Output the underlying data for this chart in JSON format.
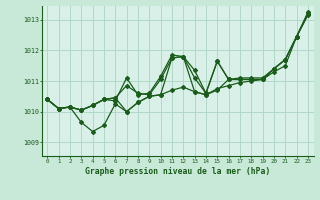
{
  "title": "Graphe pression niveau de la mer (hPa)",
  "background_color": "#c8e8d8",
  "plot_bg_color": "#d8f0e8",
  "grid_color": "#b0d8c8",
  "line_color": "#1a5c1a",
  "xlim": [
    -0.5,
    23.5
  ],
  "ylim": [
    1008.55,
    1013.45
  ],
  "yticks": [
    1009,
    1010,
    1011,
    1012,
    1013
  ],
  "xticks": [
    0,
    1,
    2,
    3,
    4,
    5,
    6,
    7,
    8,
    9,
    10,
    11,
    12,
    13,
    14,
    15,
    16,
    17,
    18,
    19,
    20,
    21,
    22,
    23
  ],
  "series": [
    [
      1010.4,
      1010.1,
      1010.15,
      1009.65,
      1009.35,
      1009.55,
      1010.25,
      1010.0,
      1010.3,
      1010.5,
      1010.55,
      1010.7,
      1010.8,
      1010.65,
      1010.55,
      1010.75,
      1010.85,
      1010.95,
      1011.0,
      1011.05,
      1011.3,
      1011.5,
      1012.45,
      1013.2
    ],
    [
      1010.4,
      1010.1,
      1010.15,
      1010.05,
      1010.2,
      1010.4,
      1010.35,
      1011.1,
      1010.55,
      1010.6,
      1011.15,
      1011.85,
      1011.8,
      1011.35,
      1010.6,
      1011.65,
      1011.05,
      1011.1,
      1011.1,
      1011.1,
      1011.4,
      1011.7,
      1012.45,
      1013.25
    ],
    [
      1010.4,
      1010.1,
      1010.15,
      1010.05,
      1010.2,
      1010.4,
      1010.45,
      1010.85,
      1010.6,
      1010.55,
      1011.05,
      1011.75,
      1011.8,
      1011.1,
      1010.6,
      1011.65,
      1011.05,
      1011.05,
      1011.05,
      1011.05,
      1011.4,
      1011.7,
      1012.45,
      1013.2
    ],
    [
      1010.4,
      1010.1,
      1010.15,
      1010.05,
      1010.2,
      1010.4,
      1010.45,
      1010.0,
      1010.3,
      1010.5,
      1010.55,
      1011.75,
      1011.8,
      1010.65,
      1010.55,
      1010.7,
      1011.05,
      1011.05,
      1011.05,
      1011.05,
      1011.4,
      1011.7,
      1012.45,
      1013.15
    ]
  ]
}
